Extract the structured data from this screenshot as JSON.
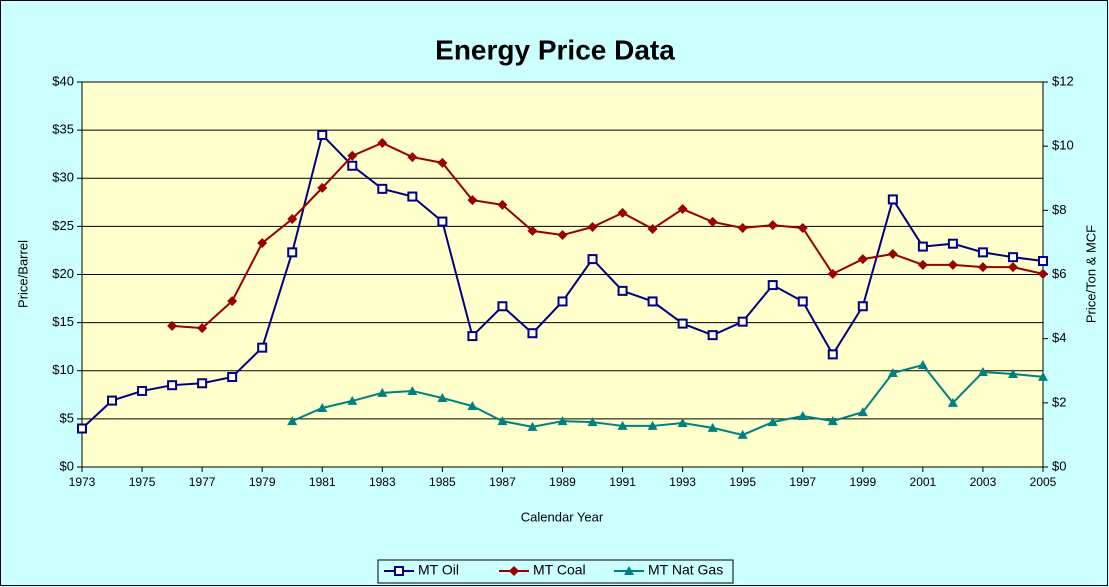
{
  "chart_data": {
    "type": "line",
    "title": "Energy Price Data",
    "x_label": "Calendar Year",
    "y_label": "Price/Barrel",
    "y2_label": "Price/Ton & MCF",
    "x": [
      1973,
      1974,
      1975,
      1976,
      1977,
      1978,
      1979,
      1980,
      1981,
      1982,
      1983,
      1984,
      1985,
      1986,
      1987,
      1988,
      1989,
      1990,
      1991,
      1992,
      1993,
      1994,
      1995,
      1996,
      1997,
      1998,
      1999,
      2000,
      2001,
      2002,
      2003,
      2004,
      2005
    ],
    "series": [
      {
        "name": "MT Oil",
        "color": "#000080",
        "marker": "square",
        "axis": "y",
        "values": [
          4.0,
          6.9,
          7.9,
          8.5,
          8.7,
          9.35,
          12.4,
          22.3,
          34.5,
          31.3,
          28.9,
          28.1,
          25.5,
          13.6,
          16.7,
          13.9,
          17.2,
          21.6,
          18.3,
          17.2,
          14.9,
          13.7,
          15.1,
          18.9,
          17.2,
          11.7,
          16.7,
          27.8,
          22.9,
          23.2,
          22.3,
          21.8,
          21.4
        ]
      },
      {
        "name": "MT Coal",
        "color": "#990000",
        "marker": "diamond",
        "axis": "y2",
        "values": [
          null,
          null,
          null,
          4.4,
          4.33,
          5.17,
          6.98,
          7.73,
          8.7,
          9.7,
          10.1,
          9.66,
          9.48,
          8.32,
          8.17,
          7.36,
          7.23,
          7.48,
          7.92,
          7.42,
          8.04,
          7.64,
          7.45,
          7.54,
          7.45,
          6.02,
          6.48,
          6.64,
          6.3,
          6.3,
          6.23,
          6.23,
          6.02
        ]
      },
      {
        "name": "MT Nat Gas",
        "color": "#008080",
        "marker": "triangle",
        "axis": "y2",
        "values": [
          null,
          null,
          null,
          null,
          null,
          null,
          null,
          1.43,
          1.84,
          2.06,
          2.31,
          2.37,
          2.15,
          1.9,
          1.43,
          1.25,
          1.43,
          1.4,
          1.28,
          1.28,
          1.37,
          1.22,
          1.0,
          1.4,
          1.59,
          1.43,
          1.71,
          2.93,
          3.18,
          2.0,
          2.96,
          2.9,
          2.81
        ]
      }
    ],
    "xlim": [
      1973,
      2005
    ],
    "xticks": [
      1973,
      1975,
      1977,
      1979,
      1981,
      1983,
      1985,
      1987,
      1989,
      1991,
      1993,
      1995,
      1997,
      1999,
      2001,
      2003,
      2005
    ],
    "ylim": [
      0,
      40
    ],
    "yticks": [
      {
        "value": 0,
        "label": "$0"
      },
      {
        "value": 5,
        "label": "$5"
      },
      {
        "value": 10,
        "label": "$10"
      },
      {
        "value": 15,
        "label": "$15"
      },
      {
        "value": 20,
        "label": "$20"
      },
      {
        "value": 25,
        "label": "$25"
      },
      {
        "value": 30,
        "label": "$30"
      },
      {
        "value": 35,
        "label": "$35"
      },
      {
        "value": 40,
        "label": "$40"
      }
    ],
    "y2lim": [
      0,
      12
    ],
    "y2ticks": [
      {
        "value": 0,
        "label": "$0"
      },
      {
        "value": 2,
        "label": "$2"
      },
      {
        "value": 4,
        "label": "$4"
      },
      {
        "value": 6,
        "label": "$6"
      },
      {
        "value": 8,
        "label": "$8"
      },
      {
        "value": 10,
        "label": "$10"
      },
      {
        "value": 12,
        "label": "$12"
      }
    ],
    "grid": true,
    "legend": "bottom"
  }
}
